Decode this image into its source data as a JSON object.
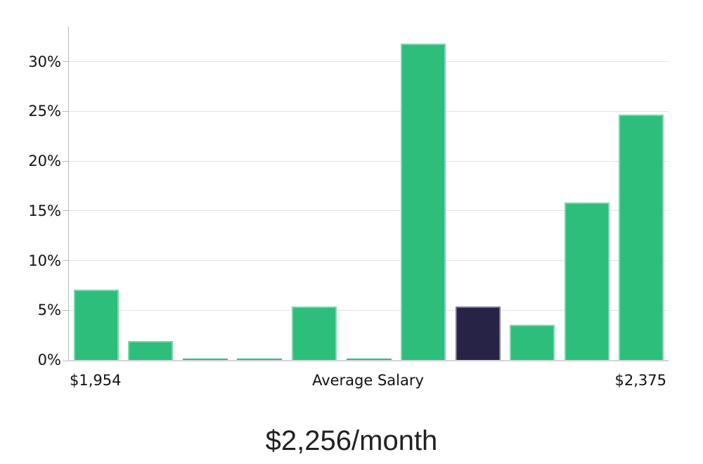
{
  "chart_data": {
    "type": "bar",
    "title": "$2,256/month",
    "xlabel": "",
    "ylabel": "",
    "ylim": [
      0,
      33.5
    ],
    "y_ticks": [
      0,
      5,
      10,
      15,
      20,
      25,
      30
    ],
    "y_tick_suffix": "%",
    "grid": true,
    "legend_position": "none",
    "values": [
      7.1,
      1.9,
      0.15,
      0.15,
      5.4,
      0.15,
      31.8,
      5.4,
      3.5,
      15.8,
      24.7
    ],
    "highlight_index": 7,
    "x_tick_labels": [
      {
        "slot": 0,
        "label": "$1,954"
      },
      {
        "slot": 5,
        "label": "Average Salary"
      },
      {
        "slot": 10,
        "label": "$2,375"
      }
    ]
  },
  "colors": {
    "bar_default": "#2dbe7b",
    "bar_highlight": "#272347",
    "gridline": "#e3e3e3",
    "axis_line": "#b9b9b9",
    "baseline": "#d4d4d4",
    "tick_text": "#111111",
    "title_text": "#212121"
  }
}
